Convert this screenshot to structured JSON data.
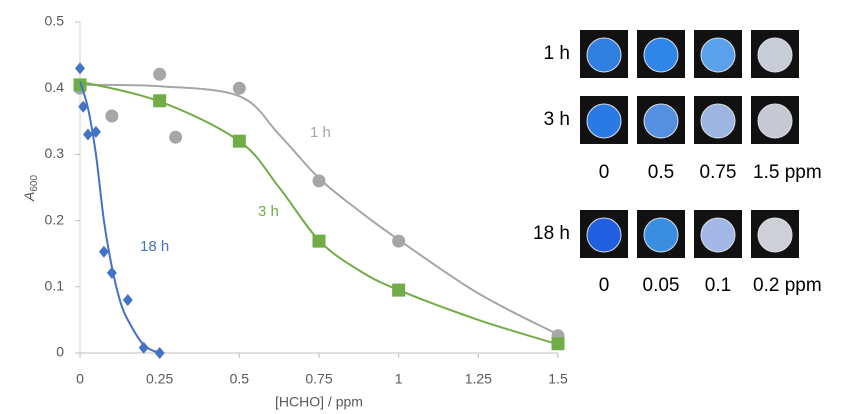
{
  "chart_data": {
    "type": "scatter",
    "x_label": "[HCHO] / ppm",
    "y_label": "A",
    "y_label_sub": "600",
    "xlim": [
      0,
      1.5
    ],
    "xticks": [
      0,
      0.25,
      0.5,
      0.75,
      1,
      1.25,
      1.5
    ],
    "ylim": [
      0,
      0.5
    ],
    "yticks": [
      0,
      0.1,
      0.2,
      0.3,
      0.4,
      0.5
    ],
    "grid": false,
    "series": [
      {
        "name": "1 h",
        "color": "#a6a6a6",
        "marker": "circle",
        "x": [
          0,
          0.1,
          0.25,
          0.3,
          0.5,
          0.75,
          1,
          1.5
        ],
        "values": [
          0.4,
          0.358,
          0.421,
          0.326,
          0.4,
          0.26,
          0.169,
          0.026
        ],
        "fit_x": [
          0,
          0.25,
          0.5,
          0.625,
          0.75,
          0.875,
          1,
          1.25,
          1.5
        ],
        "fit_values": [
          0.405,
          0.403,
          0.388,
          0.33,
          0.264,
          0.215,
          0.171,
          0.09,
          0.028
        ]
      },
      {
        "name": "3 h",
        "color": "#70ad47",
        "marker": "square",
        "x": [
          0,
          0.25,
          0.5,
          0.75,
          1,
          1.5
        ],
        "values": [
          0.405,
          0.381,
          0.32,
          0.169,
          0.095,
          0.014
        ],
        "fit_x": [
          0,
          0.25,
          0.5,
          0.625,
          0.75,
          0.875,
          1,
          1.25,
          1.5
        ],
        "fit_values": [
          0.41,
          0.38,
          0.32,
          0.25,
          0.17,
          0.125,
          0.095,
          0.05,
          0.013
        ]
      },
      {
        "name": "18 h",
        "color": "#4472c4",
        "marker": "diamond",
        "x": [
          0,
          0.01,
          0.025,
          0.05,
          0.075,
          0.1,
          0.15,
          0.2,
          0.25
        ],
        "values": [
          0.43,
          0.372,
          0.33,
          0.334,
          0.153,
          0.121,
          0.08,
          0.008,
          0
        ],
        "fit_x": [
          0,
          0.025,
          0.05,
          0.075,
          0.1,
          0.125,
          0.15,
          0.2,
          0.25
        ],
        "fit_values": [
          0.41,
          0.37,
          0.3,
          0.2,
          0.13,
          0.08,
          0.05,
          0.012,
          0
        ]
      }
    ]
  },
  "photo_panel": {
    "rows": [
      {
        "label": "1 h",
        "wells": [
          "#2f7fe0",
          "#2f86e8",
          "#5aa0ea",
          "#c8ccd6"
        ]
      },
      {
        "label": "3 h",
        "wells": [
          "#2a7ae6",
          "#5590e0",
          "#9db5e0",
          "#c6c9d1"
        ]
      },
      {
        "label": "18 h",
        "wells": [
          "#2060e0",
          "#3a8ee0",
          "#a3b8e6",
          "#cfd0d6"
        ]
      }
    ],
    "concentrations": [
      [
        "0",
        "0.5",
        "0.75",
        "1.5 ppm"
      ],
      [
        "0",
        "0.05",
        "0.1",
        "0.2 ppm"
      ]
    ]
  }
}
